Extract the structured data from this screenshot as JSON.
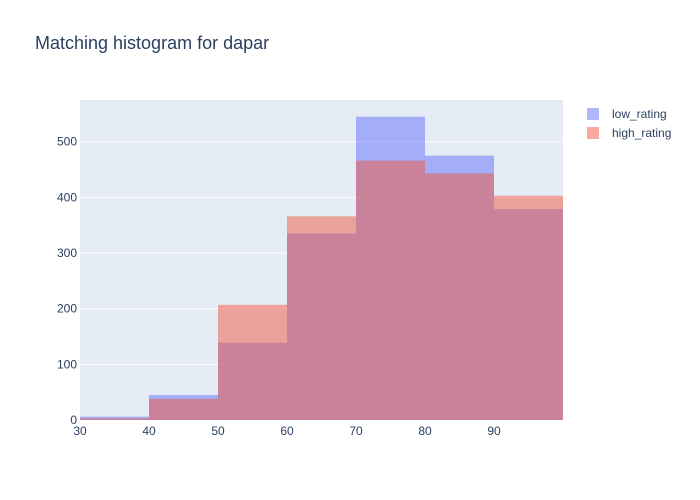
{
  "chart_data": {
    "type": "bar",
    "title": "Matching histogram for dapar",
    "xlabel": "",
    "ylabel": "",
    "bins": [
      [
        30,
        40
      ],
      [
        40,
        50
      ],
      [
        50,
        60
      ],
      [
        60,
        70
      ],
      [
        70,
        80
      ],
      [
        80,
        90
      ],
      [
        90,
        100
      ]
    ],
    "xlim": [
      30,
      100
    ],
    "ylim": [
      0,
      575
    ],
    "x_ticks": [
      30,
      40,
      50,
      60,
      70,
      80,
      90
    ],
    "y_ticks": [
      0,
      100,
      200,
      300,
      400,
      500
    ],
    "series": [
      {
        "name": "low_rating",
        "color": "#636efa",
        "values": [
          6,
          45,
          139,
          335,
          545,
          475,
          379
        ]
      },
      {
        "name": "high_rating",
        "color": "#ef553b",
        "values": [
          3,
          38,
          207,
          366,
          466,
          443,
          403
        ]
      }
    ],
    "legend_position": "top-right",
    "grid": true,
    "barmode": "overlay",
    "opacity": 0.5,
    "plot_background": "#e5ecf6"
  }
}
